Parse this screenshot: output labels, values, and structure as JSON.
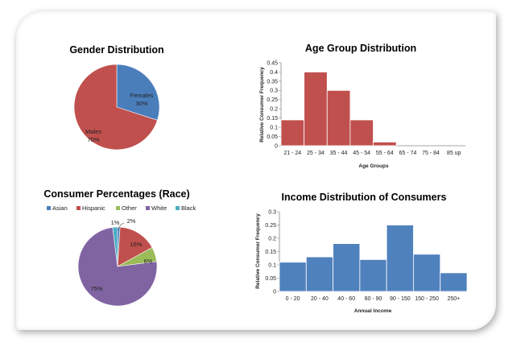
{
  "chart_data": [
    {
      "id": "gender",
      "type": "pie",
      "title": "Gender Distribution",
      "slices": [
        {
          "label": "Females",
          "value": 30,
          "text": "30%",
          "color": "#4a7ebb"
        },
        {
          "label": "Males",
          "value": 70,
          "text": "70%",
          "color": "#c0504d"
        }
      ]
    },
    {
      "id": "age",
      "type": "bar",
      "title": "Age Group Distribution",
      "xlabel": "Age Groups",
      "ylabel": "Relative Consumer Frequency",
      "categories": [
        "21 - 24",
        "25 - 34",
        "35 - 44",
        "45 - 54",
        "55 - 64",
        "65 - 74",
        "75 - 84",
        "85 up"
      ],
      "values": [
        0.14,
        0.4,
        0.3,
        0.14,
        0.02,
        0,
        0,
        0
      ],
      "ylim": [
        0,
        0.45
      ],
      "yticks": [
        "0",
        "0.05",
        "0.1",
        "0.15",
        "0.2",
        "0.25",
        "0.3",
        "0.35",
        "0.4",
        "0.45"
      ],
      "color": "#c0504d"
    },
    {
      "id": "race",
      "type": "pie",
      "title": "Consumer Percentages (Race)",
      "legend_position": "top",
      "slices": [
        {
          "label": "Asian",
          "value": 1,
          "text": "1%",
          "color": "#4a7ebb"
        },
        {
          "label": "Hispanic",
          "value": 16,
          "text": "16%",
          "color": "#c0504d"
        },
        {
          "label": "Other",
          "value": 6,
          "text": "6%",
          "color": "#9bbb59"
        },
        {
          "label": "White",
          "value": 75,
          "text": "75%",
          "color": "#8064a2"
        },
        {
          "label": "Black",
          "value": 2,
          "text": "2%",
          "color": "#4bacc6"
        }
      ]
    },
    {
      "id": "income",
      "type": "bar",
      "title": "Income Distribution of Consumers",
      "xlabel": "Annual Income",
      "ylabel": "Relative Consumer Frequency",
      "categories": [
        "0 - 20",
        "20 - 40",
        "40 - 60",
        "60 - 90",
        "90 - 150",
        "150 - 250",
        "250+"
      ],
      "values": [
        0.11,
        0.13,
        0.18,
        0.12,
        0.25,
        0.14,
        0.07
      ],
      "ylim": [
        0,
        0.3
      ],
      "yticks": [
        "0",
        "0.05",
        "0.1",
        "0.15",
        "0.2",
        "0.25",
        "0.3"
      ],
      "color": "#4f81bd"
    }
  ]
}
